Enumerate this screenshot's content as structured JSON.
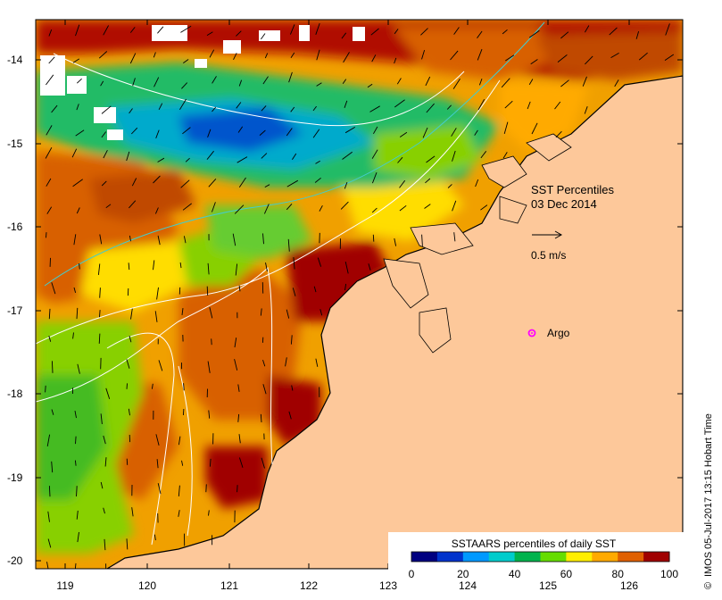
{
  "map": {
    "title_line1": "SST Percentiles",
    "title_line2": "03 Dec 2014",
    "vector_scale_label": "0.5 m/s",
    "argo_label": "Argo",
    "credit": "IMOS 05-Jul-2017 13:15 Hobart Time",
    "copyright_symbol": "©",
    "x_ticks": [
      "119",
      "120",
      "121",
      "122",
      "123",
      "124",
      "125",
      "126"
    ],
    "y_ticks": [
      "-14",
      "-15",
      "-16",
      "-17",
      "-18",
      "-19",
      "-20"
    ],
    "land_color": "#fdc89a",
    "argo_color": "#ff00ff"
  },
  "legend": {
    "title": "SSTAARS percentiles of daily SST",
    "tick_labels": [
      "0",
      "20",
      "40",
      "60",
      "80",
      "100"
    ],
    "colors": [
      "#000080",
      "#0033cc",
      "#0099ff",
      "#00cccc",
      "#00b34d",
      "#66dd00",
      "#ffee00",
      "#ffaa00",
      "#e06000",
      "#a00000"
    ]
  }
}
